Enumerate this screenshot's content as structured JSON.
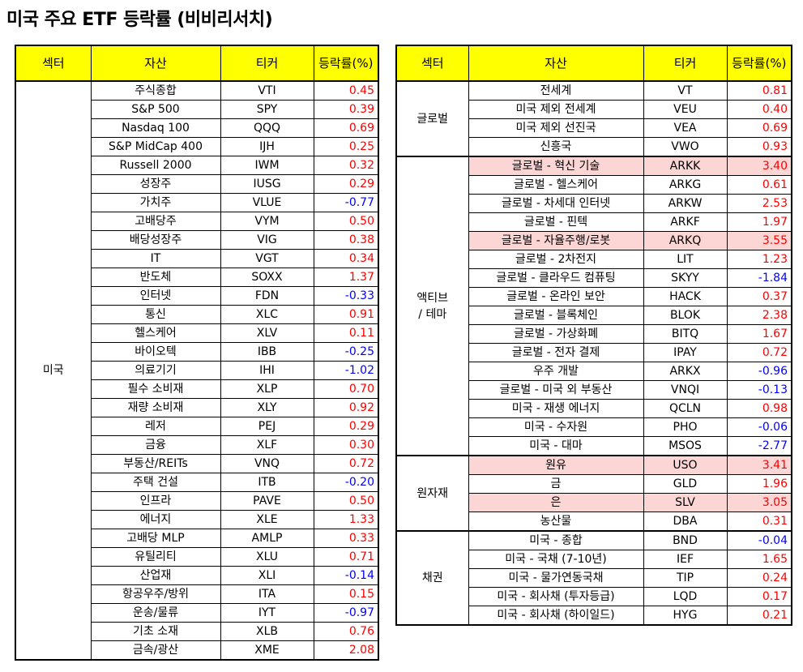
{
  "title": "미국 주요 ETF 등락률 (비비리서치)",
  "headers": {
    "sector": "섹터",
    "asset": "자산",
    "ticker": "티커",
    "change": "등락률(%)"
  },
  "left": [
    {
      "sector": "미국",
      "rows": [
        {
          "asset": "주식종합",
          "ticker": "VTI",
          "change": "0.45"
        },
        {
          "asset": "S&P 500",
          "ticker": "SPY",
          "change": "0.39"
        },
        {
          "asset": "Nasdaq 100",
          "ticker": "QQQ",
          "change": "0.69"
        },
        {
          "asset": "S&P MidCap 400",
          "ticker": "IJH",
          "change": "0.25"
        },
        {
          "asset": "Russell 2000",
          "ticker": "IWM",
          "change": "0.32"
        },
        {
          "asset": "성장주",
          "ticker": "IUSG",
          "change": "0.29"
        },
        {
          "asset": "가치주",
          "ticker": "VLUE",
          "change": "-0.77"
        },
        {
          "asset": "고배당주",
          "ticker": "VYM",
          "change": "0.50"
        },
        {
          "asset": "배당성장주",
          "ticker": "VIG",
          "change": "0.38"
        },
        {
          "asset": "IT",
          "ticker": "VGT",
          "change": "0.34"
        },
        {
          "asset": "반도체",
          "ticker": "SOXX",
          "change": "1.37"
        },
        {
          "asset": "인터넷",
          "ticker": "FDN",
          "change": "-0.33"
        },
        {
          "asset": "통신",
          "ticker": "XLC",
          "change": "0.91"
        },
        {
          "asset": "헬스케어",
          "ticker": "XLV",
          "change": "0.11"
        },
        {
          "asset": "바이오텍",
          "ticker": "IBB",
          "change": "-0.25"
        },
        {
          "asset": "의료기기",
          "ticker": "IHI",
          "change": "-1.02"
        },
        {
          "asset": "필수 소비재",
          "ticker": "XLP",
          "change": "0.70"
        },
        {
          "asset": "재량 소비재",
          "ticker": "XLY",
          "change": "0.92"
        },
        {
          "asset": "레저",
          "ticker": "PEJ",
          "change": "0.29"
        },
        {
          "asset": "금융",
          "ticker": "XLF",
          "change": "0.30"
        },
        {
          "asset": "부동산/REITs",
          "ticker": "VNQ",
          "change": "0.72"
        },
        {
          "asset": "주택 건설",
          "ticker": "ITB",
          "change": "-0.20"
        },
        {
          "asset": "인프라",
          "ticker": "PAVE",
          "change": "0.50"
        },
        {
          "asset": "에너지",
          "ticker": "XLE",
          "change": "1.33"
        },
        {
          "asset": "고배당 MLP",
          "ticker": "AMLP",
          "change": "0.33"
        },
        {
          "asset": "유틸리티",
          "ticker": "XLU",
          "change": "0.71"
        },
        {
          "asset": "산업재",
          "ticker": "XLI",
          "change": "-0.14"
        },
        {
          "asset": "항공우주/방위",
          "ticker": "ITA",
          "change": "0.15"
        },
        {
          "asset": "운송/물류",
          "ticker": "IYT",
          "change": "-0.97"
        },
        {
          "asset": "기초 소재",
          "ticker": "XLB",
          "change": "0.76"
        },
        {
          "asset": "금속/광산",
          "ticker": "XME",
          "change": "2.08"
        }
      ]
    }
  ],
  "right": [
    {
      "sector": "글로벌",
      "rows": [
        {
          "asset": "전세계",
          "ticker": "VT",
          "change": "0.81"
        },
        {
          "asset": "미국 제외 전세계",
          "ticker": "VEU",
          "change": "0.40"
        },
        {
          "asset": "미국 제외 선진국",
          "ticker": "VEA",
          "change": "0.69"
        },
        {
          "asset": "신흥국",
          "ticker": "VWO",
          "change": "0.93"
        }
      ]
    },
    {
      "sector": "액티브\n/ 테마",
      "rows": [
        {
          "asset": "글로벌 - 혁신 기술",
          "ticker": "ARKK",
          "change": "3.40",
          "highlight": true
        },
        {
          "asset": "글로벌 - 헬스케어",
          "ticker": "ARKG",
          "change": "0.61"
        },
        {
          "asset": "글로벌 - 차세대 인터넷",
          "ticker": "ARKW",
          "change": "2.53"
        },
        {
          "asset": "글로벌 - 핀텍",
          "ticker": "ARKF",
          "change": "1.97"
        },
        {
          "asset": "글로벌 - 자율주행/로봇",
          "ticker": "ARKQ",
          "change": "3.55",
          "highlight": true
        },
        {
          "asset": "글로벌 - 2차전지",
          "ticker": "LIT",
          "change": "1.23"
        },
        {
          "asset": "글로벌 - 클라우드 컴퓨팅",
          "ticker": "SKYY",
          "change": "-1.84"
        },
        {
          "asset": "글로벌 - 온라인 보안",
          "ticker": "HACK",
          "change": "0.37"
        },
        {
          "asset": "글로벌 - 블록체인",
          "ticker": "BLOK",
          "change": "2.38"
        },
        {
          "asset": "글로벌 - 가상화폐",
          "ticker": "BITQ",
          "change": "1.67"
        },
        {
          "asset": "글로벌 - 전자 결제",
          "ticker": "IPAY",
          "change": "0.72"
        },
        {
          "asset": "우주 개발",
          "ticker": "ARKX",
          "change": "-0.96"
        },
        {
          "asset": "글로벌 - 미국 외 부동산",
          "ticker": "VNQI",
          "change": "-0.13"
        },
        {
          "asset": "미국 - 재생 에너지",
          "ticker": "QCLN",
          "change": "0.98"
        },
        {
          "asset": "미국 - 수자원",
          "ticker": "PHO",
          "change": "-0.06"
        },
        {
          "asset": "미국 - 대마",
          "ticker": "MSOS",
          "change": "-2.77"
        }
      ]
    },
    {
      "sector": "원자재",
      "rows": [
        {
          "asset": "원유",
          "ticker": "USO",
          "change": "3.41",
          "highlight": true
        },
        {
          "asset": "금",
          "ticker": "GLD",
          "change": "1.96"
        },
        {
          "asset": "은",
          "ticker": "SLV",
          "change": "3.05",
          "highlight": true
        },
        {
          "asset": "농산물",
          "ticker": "DBA",
          "change": "0.31"
        }
      ]
    },
    {
      "sector": "채권",
      "rows": [
        {
          "asset": "미국 - 종합",
          "ticker": "BND",
          "change": "-0.04"
        },
        {
          "asset": "미국 - 국채 (7-10년)",
          "ticker": "IEF",
          "change": "1.65"
        },
        {
          "asset": "미국 - 물가연동국채",
          "ticker": "TIP",
          "change": "0.24"
        },
        {
          "asset": "미국 - 회사채 (투자등급)",
          "ticker": "LQD",
          "change": "0.17"
        },
        {
          "asset": "미국 - 회사채 (하이일드)",
          "ticker": "HYG",
          "change": "0.21"
        }
      ]
    }
  ],
  "colors": {
    "header_bg": "#ffff00",
    "positive": "#ff0000",
    "negative": "#0000ff",
    "highlight_bg": "#fcd5d5"
  }
}
